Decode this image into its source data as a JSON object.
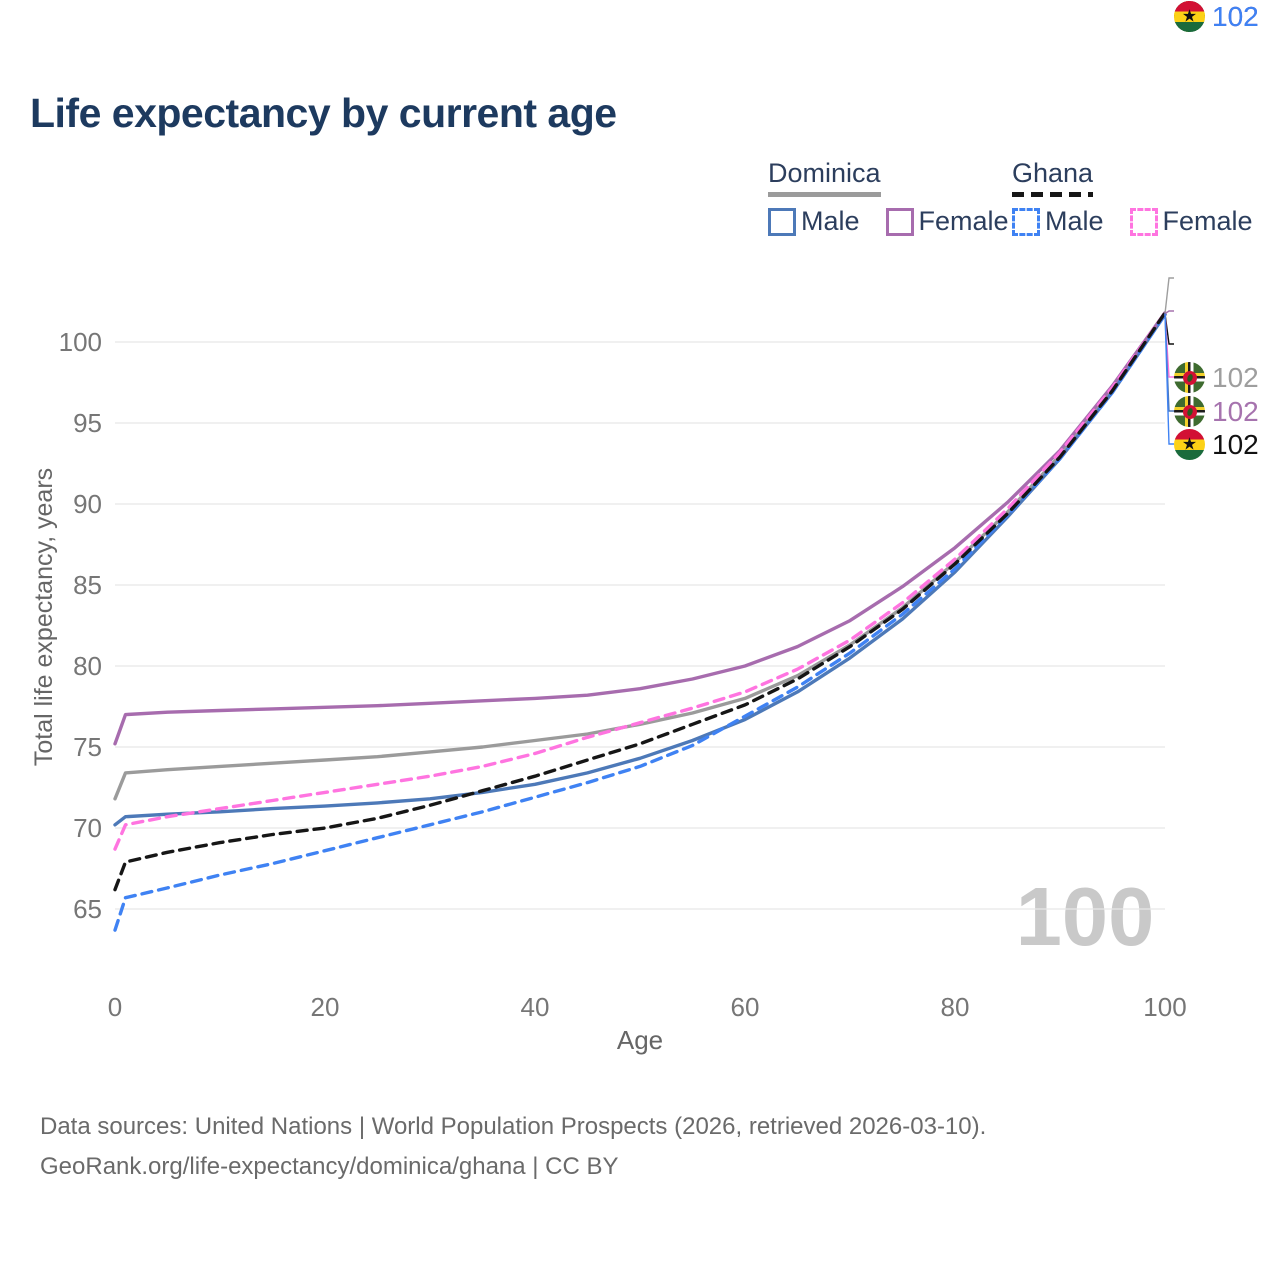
{
  "title": "Life expectancy by current age",
  "legend": {
    "groups": [
      {
        "name": "Dominica",
        "style": "solid",
        "color": "#9b9b9b",
        "items": [
          {
            "label": "Male",
            "color": "#4d79b8",
            "dashed": "false"
          },
          {
            "label": "Female",
            "color": "#a76cae",
            "dashed": "false"
          }
        ]
      },
      {
        "name": "Ghana",
        "style": "dashed",
        "color": "#161616",
        "items": [
          {
            "label": "Male",
            "color": "#3f82f3",
            "dashed": "true"
          },
          {
            "label": "Female",
            "color": "#ff74e0",
            "dashed": "true"
          }
        ]
      }
    ]
  },
  "chart_data": {
    "type": "line",
    "title": "Life expectancy by current age",
    "xlabel": "Age",
    "ylabel": "Total life expectancy, years",
    "xlim": [
      0,
      100
    ],
    "ylim": [
      62,
      103
    ],
    "xticks": [
      0,
      20,
      40,
      60,
      80,
      100
    ],
    "yticks": [
      65,
      70,
      75,
      80,
      85,
      90,
      95,
      100
    ],
    "grid": "horizontal-only",
    "legend_position": "top-right",
    "watermark": "100",
    "x": [
      0,
      1,
      5,
      10,
      15,
      20,
      25,
      30,
      35,
      40,
      45,
      50,
      55,
      60,
      65,
      70,
      75,
      80,
      85,
      90,
      95,
      100
    ],
    "series": [
      {
        "name": "Dominica",
        "color": "#9b9b9b",
        "dashed": false,
        "values": [
          71.8,
          73.4,
          73.6,
          73.8,
          74.0,
          74.2,
          74.4,
          74.7,
          75.0,
          75.4,
          75.8,
          76.4,
          77.1,
          78.0,
          79.4,
          81.3,
          83.6,
          86.4,
          89.5,
          93.0,
          97.1,
          101.7
        ]
      },
      {
        "name": "Dominica Male",
        "color": "#4d79b8",
        "dashed": false,
        "values": [
          70.2,
          70.7,
          70.85,
          71.0,
          71.2,
          71.35,
          71.55,
          71.8,
          72.2,
          72.7,
          73.4,
          74.3,
          75.4,
          76.7,
          78.4,
          80.5,
          82.9,
          85.8,
          89.2,
          92.8,
          96.9,
          101.7
        ]
      },
      {
        "name": "Dominica Female",
        "color": "#a76cae",
        "dashed": false,
        "values": [
          75.2,
          77.0,
          77.15,
          77.25,
          77.35,
          77.45,
          77.55,
          77.7,
          77.85,
          78.0,
          78.2,
          78.6,
          79.2,
          80.0,
          81.2,
          82.8,
          84.9,
          87.3,
          90.1,
          93.3,
          97.3,
          101.8
        ]
      },
      {
        "name": "Ghana Male",
        "color": "#3f82f3",
        "dashed": true,
        "values": [
          63.7,
          65.7,
          66.3,
          67.1,
          67.8,
          68.6,
          69.4,
          70.2,
          71.0,
          71.9,
          72.8,
          73.8,
          75.1,
          76.9,
          78.7,
          80.8,
          83.2,
          86.0,
          89.3,
          92.8,
          96.9,
          101.7
        ]
      },
      {
        "name": "Ghana Female",
        "color": "#ff74e0",
        "dashed": true,
        "values": [
          68.7,
          70.2,
          70.7,
          71.2,
          71.7,
          72.2,
          72.7,
          73.2,
          73.8,
          74.6,
          75.6,
          76.5,
          77.4,
          78.4,
          79.8,
          81.6,
          83.9,
          86.6,
          89.7,
          93.2,
          97.2,
          101.8
        ]
      },
      {
        "name": "Ghana",
        "color": "#161616",
        "dashed": true,
        "values": [
          66.2,
          67.9,
          68.5,
          69.1,
          69.6,
          70.0,
          70.6,
          71.4,
          72.3,
          73.2,
          74.2,
          75.2,
          76.4,
          77.6,
          79.2,
          81.2,
          83.5,
          86.3,
          89.4,
          92.9,
          97.0,
          101.8
        ]
      }
    ],
    "end_labels": [
      {
        "value": "102",
        "flag": "dominica",
        "series": "Dominica",
        "color": "#9e9e9e"
      },
      {
        "value": "102",
        "flag": "dominica",
        "series": "Dominica Female",
        "color": "#a673ae"
      },
      {
        "value": "102",
        "flag": "ghana",
        "series": "Ghana",
        "color": "#111111"
      },
      {
        "value": "102",
        "flag": "ghana",
        "series": "Ghana Female",
        "color": "#ff74e0"
      },
      {
        "value": "102",
        "flag": "dominica",
        "series": "Dominica Male",
        "color": "#4d79b8"
      },
      {
        "value": "102",
        "flag": "ghana",
        "series": "Ghana Male",
        "color": "#3f82f3"
      }
    ]
  },
  "footer": {
    "line1": "Data sources: United Nations | World Population Prospects (2026, retrieved 2026-03-10).",
    "line2": "GeoRank.org/life-expectancy/dominica/ghana | CC BY"
  }
}
